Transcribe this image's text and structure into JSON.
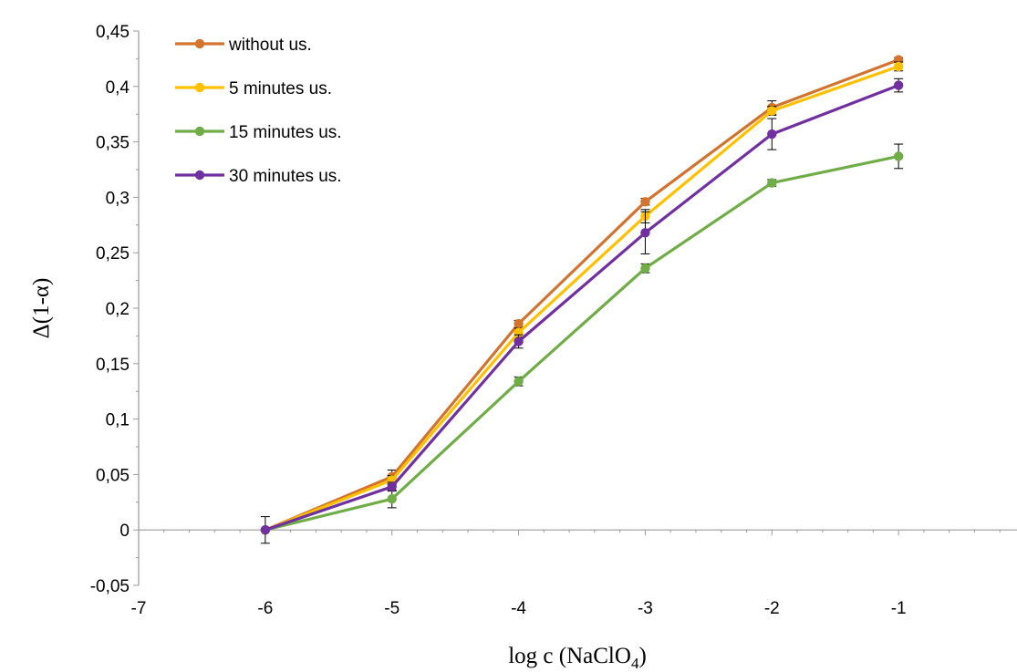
{
  "chart_data": {
    "type": "line",
    "title": "",
    "xlabel": {
      "main": "log c (NaClO",
      "sub": "4",
      "end": ")"
    },
    "ylabel": "Δ(1-α)",
    "xlim": [
      -7,
      0
    ],
    "ylim": [
      -0.05,
      0.45
    ],
    "x_ticks": [
      -7,
      -6,
      -5,
      -4,
      -3,
      -2,
      -1
    ],
    "x_tick_labels": [
      "-7",
      "-6",
      "-5",
      "-4",
      "-3",
      "-2",
      "-1"
    ],
    "y_ticks": [
      -0.05,
      0,
      0.05,
      0.1,
      0.15,
      0.2,
      0.25,
      0.3,
      0.35,
      0.4,
      0.45
    ],
    "y_tick_labels": [
      "-0,05",
      "0",
      "0,05",
      "0,1",
      "0,15",
      "0,2",
      "0,25",
      "0,3",
      "0,35",
      "0,4",
      "0,45"
    ],
    "grid": false,
    "legend_position": "top-left",
    "x": [
      -6,
      -5,
      -4,
      -3,
      -2,
      -1
    ],
    "series": [
      {
        "name": "without us.",
        "color": "#D2742F",
        "values": [
          0,
          0.048,
          0.186,
          0.296,
          0.381,
          0.424
        ],
        "errors": [
          0,
          0.006,
          0.003,
          0.003,
          0.006,
          0.002
        ]
      },
      {
        "name": "5 minutes us.",
        "color": "#FFC000",
        "values": [
          0,
          0.045,
          0.178,
          0.283,
          0.378,
          0.418
        ],
        "errors": [
          0,
          0.004,
          0.004,
          0.006,
          0.004,
          0.004
        ]
      },
      {
        "name": "15 minutes us.",
        "color": "#70AD47",
        "values": [
          0,
          0.028,
          0.134,
          0.236,
          0.313,
          0.337
        ],
        "errors": [
          0,
          0.008,
          0.004,
          0.004,
          0.003,
          0.011
        ]
      },
      {
        "name": "30 minutes us.",
        "color": "#7030A0",
        "values": [
          0,
          0.039,
          0.17,
          0.268,
          0.357,
          0.401
        ],
        "errors": [
          0.012,
          0.004,
          0.006,
          0.019,
          0.014,
          0.006
        ]
      }
    ]
  }
}
